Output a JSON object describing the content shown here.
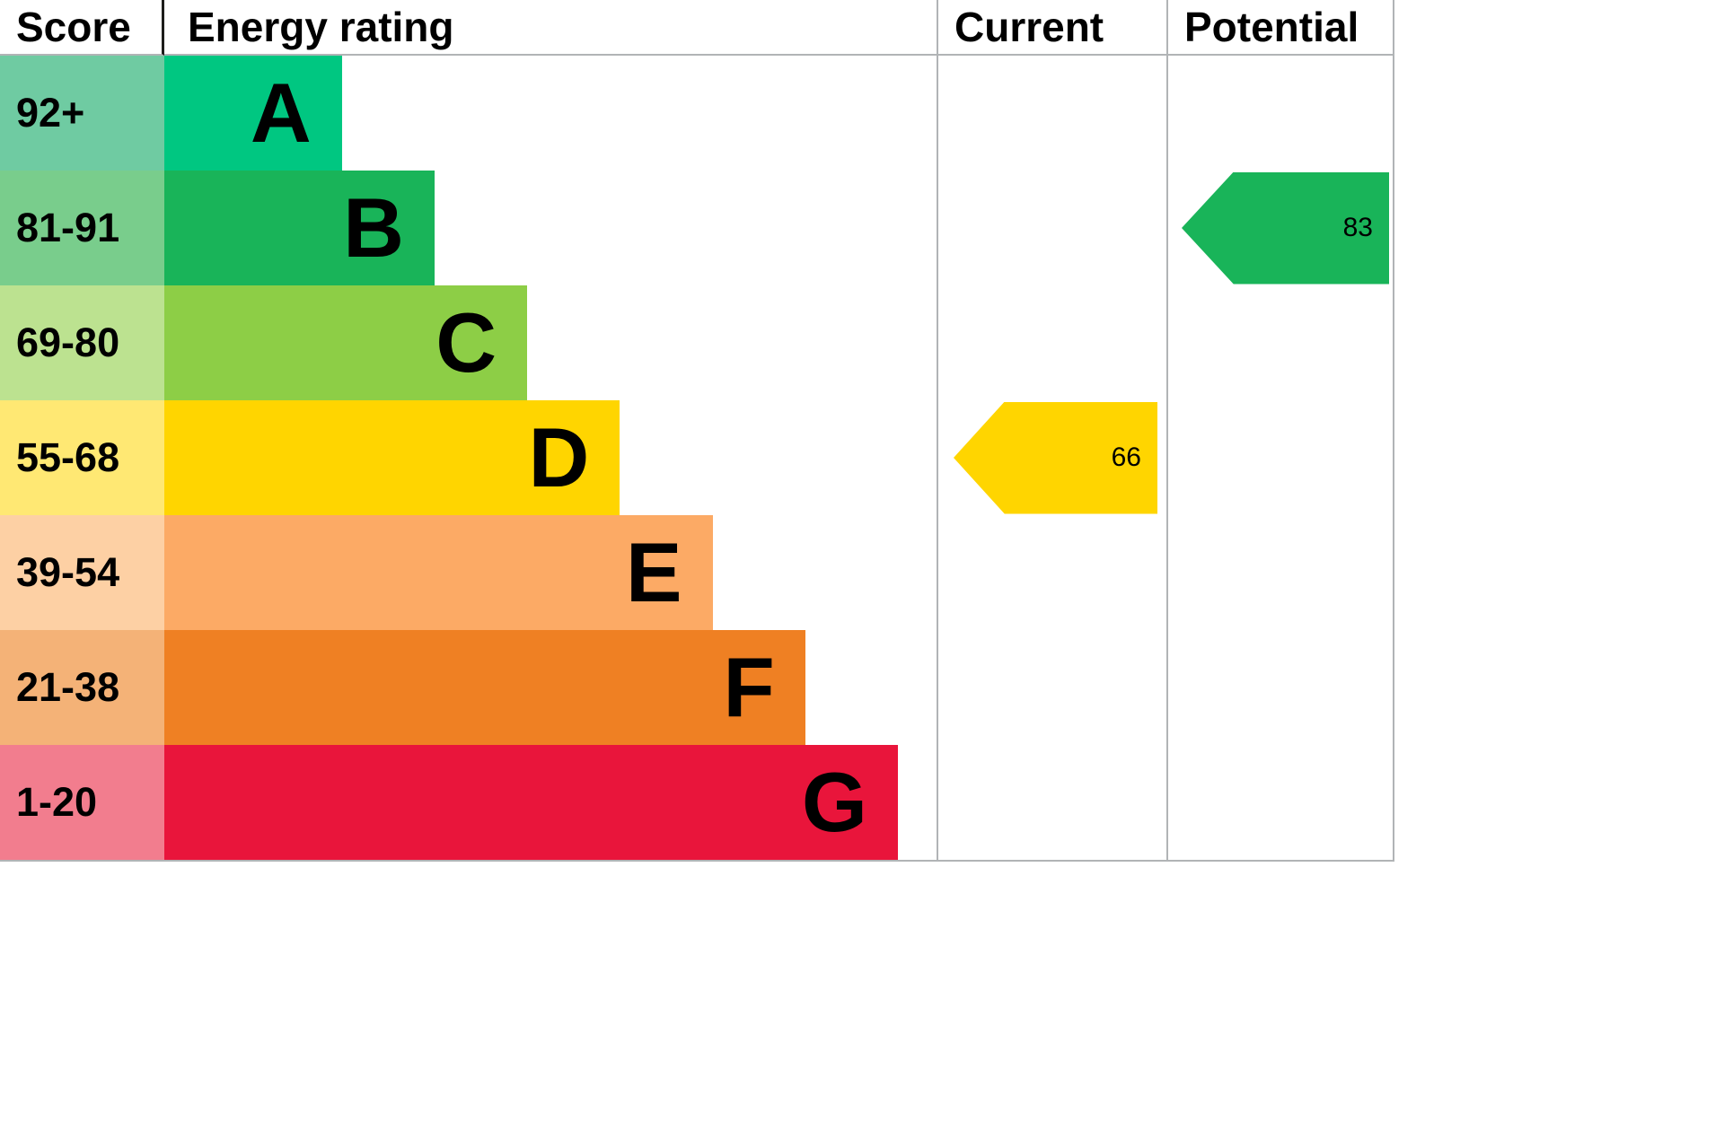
{
  "header": {
    "score_label": "Score",
    "rating_label": "Energy rating",
    "current_label": "Current",
    "potential_label": "Potential"
  },
  "chart_data": {
    "type": "bar",
    "title": "Energy rating",
    "columns": [
      "Score",
      "Energy rating",
      "Current",
      "Potential"
    ],
    "bands": [
      {
        "score": "92+",
        "letter": "A",
        "color": "#00c781",
        "score_color": "#6fcba2",
        "width": "23%"
      },
      {
        "score": "81-91",
        "letter": "B",
        "color": "#19b459",
        "score_color": "#79cd8c",
        "width": "35%"
      },
      {
        "score": "69-80",
        "letter": "C",
        "color": "#8dce46",
        "score_color": "#bce290",
        "width": "47%"
      },
      {
        "score": "55-68",
        "letter": "D",
        "color": "#ffd500",
        "score_color": "#ffe873",
        "width": "59%"
      },
      {
        "score": "39-54",
        "letter": "E",
        "color": "#fcaa65",
        "score_color": "#fdd0a4",
        "width": "71%"
      },
      {
        "score": "21-38",
        "letter": "F",
        "color": "#ef8023",
        "score_color": "#f4b277",
        "width": "83%"
      },
      {
        "score": "1-20",
        "letter": "G",
        "color": "#e9153b",
        "score_color": "#f27d8e",
        "width": "95%"
      }
    ],
    "current": {
      "value": "66",
      "band": "D",
      "color": "#ffd500"
    },
    "potential": {
      "value": "83",
      "band": "B",
      "color": "#19b459"
    }
  }
}
